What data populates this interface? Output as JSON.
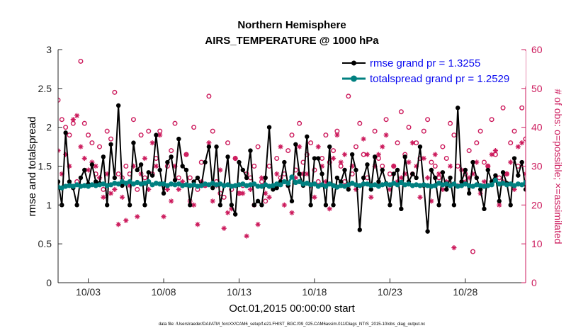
{
  "chart_data": {
    "type": "line",
    "title": "Northern Hemisphere",
    "subtitle": "AIRS_TEMPERATURE @ 1000 hPa",
    "xlabel": "Oct.01,2015 00:00:00 start",
    "ylabel": "rmse and totalspread",
    "ylabel_right": "# of obs: o=possible; ×=assimilated",
    "footnote": "data file: /Users/raeder/DAI/ATM_forcXX/CAM6_setup/f.e21.FHIST_BGC.f09_025.CAM6assim.011/Diags_NTrS_2015-10/obs_diag_output.nc",
    "xlim": [
      1.0,
      32.0
    ],
    "ylim": [
      0,
      3
    ],
    "ylim_right": [
      0,
      60
    ],
    "x_ticks": [
      {
        "value": 3,
        "label": "10/03"
      },
      {
        "value": 8,
        "label": "10/08"
      },
      {
        "value": 13,
        "label": "10/13"
      },
      {
        "value": 18,
        "label": "10/18"
      },
      {
        "value": 23,
        "label": "10/23"
      },
      {
        "value": 28,
        "label": "10/28"
      }
    ],
    "y_ticks": [
      {
        "value": 0,
        "label": "0"
      },
      {
        "value": 0.5,
        "label": "0.5"
      },
      {
        "value": 1,
        "label": "1"
      },
      {
        "value": 1.5,
        "label": "1.5"
      },
      {
        "value": 2,
        "label": "2"
      },
      {
        "value": 2.5,
        "label": "2.5"
      },
      {
        "value": 3,
        "label": "3"
      }
    ],
    "y_ticks_right": [
      {
        "value": 0,
        "label": "0"
      },
      {
        "value": 10,
        "label": "10"
      },
      {
        "value": 20,
        "label": "20"
      },
      {
        "value": 30,
        "label": "30"
      },
      {
        "value": 40,
        "label": "40"
      },
      {
        "value": 50,
        "label": "50"
      },
      {
        "value": 60,
        "label": "60"
      }
    ],
    "legend": [
      {
        "label": "rmse grand pr = 1.3255",
        "color": "#000000",
        "marker": "asterisk"
      },
      {
        "label": "totalspread grand pr = 1.2529",
        "color": "#008080",
        "marker": "circle"
      }
    ],
    "legend_position": "top-right",
    "colors": {
      "rmse": "#000000",
      "spread": "#008080",
      "obs": "#cc1a5c",
      "legend_text": "#0a0af0",
      "axis_right": "#cc1a5c"
    },
    "series": [
      {
        "name": "rmse",
        "x_start": 1.0,
        "x_step": 0.25,
        "values": [
          1.3,
          1.0,
          1.93,
          1.3,
          1.22,
          1.0,
          1.35,
          1.45,
          1.27,
          1.52,
          1.3,
          1.28,
          1.62,
          1.0,
          1.78,
          1.35,
          2.28,
          1.25,
          1.28,
          1.0,
          1.8,
          1.45,
          1.52,
          1.0,
          1.42,
          1.38,
          1.9,
          1.45,
          1.15,
          1.55,
          1.62,
          1.32,
          1.85,
          1.5,
          1.45,
          1.0,
          1.3,
          1.35,
          1.25,
          1.55,
          1.75,
          1.22,
          1.75,
          1.0,
          1.25,
          1.62,
          1.0,
          0.88,
          1.55,
          1.45,
          1.35,
          1.7,
          1.0,
          1.05,
          1.0,
          1.35,
          2.0,
          1.2,
          1.22,
          1.3,
          1.55,
          1.25,
          1.05,
          1.78,
          1.4,
          1.25,
          1.88,
          1.0,
          1.6,
          1.6,
          1.4,
          1.0,
          1.75,
          1.0,
          1.35,
          1.3,
          1.45,
          1.2,
          1.65,
          1.45,
          0.68,
          1.35,
          1.52,
          1.2,
          1.62,
          1.3,
          1.45,
          1.28,
          1.0,
          1.4,
          1.45,
          0.95,
          1.62,
          1.3,
          1.4,
          1.35,
          1.75,
          1.25,
          0.66,
          1.45,
          1.35,
          1.0,
          1.42,
          1.2,
          1.35,
          1.0,
          2.25,
          1.3,
          1.45,
          1.15,
          1.55,
          1.35,
          1.2,
          0.95,
          1.45,
          1.3,
          1.38,
          1.05,
          1.42,
          1.28,
          1.0,
          1.6,
          1.38,
          1.55,
          1.2,
          1.85,
          1.3,
          1.4,
          1.2,
          1.25,
          1.55,
          1.1,
          1.45,
          1.8,
          1.6,
          1.35,
          1.25,
          1.45,
          1.0,
          1.52,
          1.3,
          1.5,
          1.25,
          1.6,
          1.0,
          1.35,
          1.25,
          1.55,
          1.05,
          1.28,
          1.42,
          1.18,
          0.98,
          1.3,
          1.45,
          1.0,
          0.64,
          1.2,
          1.5,
          1.45,
          1.35,
          1.4,
          1.1,
          1.0,
          1.3,
          1.25,
          1.38,
          1.0,
          1.55,
          1.3,
          1.45,
          1.15,
          1.4,
          1.25,
          1.15,
          1.38,
          1.45,
          1.0,
          1.55,
          1.35,
          1.48,
          1.3,
          1.1,
          1.2,
          1.45,
          1.25,
          1.38,
          1.45,
          1.3,
          1.1,
          1.32,
          0.92,
          1.35,
          1.25,
          1.0,
          1.42,
          1.22,
          1.5,
          1.15,
          1.45,
          1.0,
          1.32,
          1.2,
          1.65,
          1.28,
          1.0,
          1.55,
          1.3,
          1.4,
          1.05,
          1.25,
          1.55,
          1.12,
          1.0,
          1.45,
          1.3,
          1.0,
          1.42,
          1.3,
          1.62,
          1.25,
          1.1,
          1.45,
          1.0,
          1.62,
          1.18,
          1.3,
          1.95,
          1.0,
          1.32,
          1.5,
          1.1,
          1.45,
          1.2,
          1.25,
          1.05,
          1.38,
          1.82,
          1.1,
          1.22,
          1.45,
          1.0,
          1.55,
          1.35,
          1.05,
          1.25,
          1.3,
          1.45,
          1.0,
          1.6,
          1.25,
          1.3,
          1.45,
          1.1,
          1.4,
          1.0,
          1.4,
          1.2,
          0.85,
          1.5,
          1.1,
          1.42,
          1.55,
          1.25,
          1.6,
          1.38,
          0.88,
          1.35,
          1.42,
          1.2,
          0.7
        ]
      },
      {
        "name": "totalspread",
        "x_start": 1.0,
        "x_step": 0.25,
        "values": [
          1.23,
          1.22,
          1.24,
          1.25,
          1.24,
          1.26,
          1.24,
          1.25,
          1.24,
          1.26,
          1.25,
          1.26,
          1.27,
          1.25,
          1.26,
          1.28,
          1.27,
          1.3,
          1.28,
          1.3,
          1.27,
          1.29,
          1.27,
          1.28,
          1.3,
          1.26,
          1.28,
          1.27,
          1.27,
          1.25,
          1.27,
          1.26,
          1.27,
          1.25,
          1.26,
          1.25,
          1.26,
          1.24,
          1.25,
          1.27,
          1.26,
          1.28,
          1.26,
          1.27,
          1.25,
          1.26,
          1.24,
          1.25,
          1.26,
          1.27,
          1.25,
          1.26,
          1.27,
          1.24,
          1.24,
          1.26,
          1.24,
          1.25,
          1.27,
          1.26,
          1.3,
          1.28,
          1.36,
          1.29,
          1.3,
          1.27,
          1.28,
          1.26,
          1.27,
          1.24,
          1.26,
          1.24,
          1.27,
          1.25,
          1.23,
          1.25,
          1.24,
          1.26,
          1.28,
          1.26,
          1.25,
          1.27,
          1.27,
          1.25,
          1.26,
          1.24,
          1.26,
          1.27,
          1.26,
          1.28,
          1.26,
          1.29,
          1.26,
          1.27,
          1.25,
          1.26,
          1.25,
          1.26,
          1.25,
          1.24,
          1.25,
          1.28,
          1.26,
          1.27,
          1.25,
          1.27,
          1.24,
          1.25,
          1.27,
          1.25,
          1.24,
          1.26,
          1.25,
          1.24,
          1.25,
          1.26,
          1.32,
          1.27,
          1.28,
          1.26,
          1.27,
          1.25,
          1.27,
          1.26,
          1.29,
          1.26,
          1.28,
          1.25,
          1.26,
          1.25,
          1.27,
          1.25,
          1.24,
          1.25,
          1.26,
          1.27,
          1.25,
          1.24,
          1.26,
          1.24,
          1.25,
          1.27,
          1.26,
          1.25,
          1.24,
          1.26,
          1.25,
          1.28,
          1.24,
          1.25,
          1.27,
          1.25,
          1.26,
          1.24,
          1.25,
          1.22,
          1.23,
          1.24,
          1.26,
          1.25,
          1.24,
          1.26,
          1.27,
          1.25,
          1.26,
          1.24,
          1.25,
          1.26,
          1.25,
          1.24,
          1.26,
          1.28,
          1.25,
          1.26,
          1.27,
          1.26,
          1.3,
          1.28,
          1.27,
          1.26,
          1.25,
          1.24,
          1.25,
          1.26,
          1.24,
          1.26,
          1.27,
          1.25,
          1.24,
          1.23,
          1.24,
          1.25,
          1.24,
          1.26,
          1.27,
          1.28,
          1.26,
          1.27,
          1.25,
          1.26,
          1.25,
          1.27,
          1.26,
          1.25,
          1.27,
          1.25,
          1.26,
          1.24,
          1.25,
          1.27,
          1.25,
          1.26,
          1.25,
          1.24,
          1.26,
          1.25,
          1.26,
          1.24,
          1.26,
          1.27,
          1.26,
          1.25,
          1.24,
          1.25,
          1.26,
          1.24,
          1.25,
          1.24,
          1.25,
          1.24,
          1.26,
          1.25,
          1.27,
          1.26,
          1.25,
          1.27,
          1.26,
          1.25,
          1.26,
          1.25,
          1.26,
          1.27,
          1.26,
          1.25,
          1.27,
          1.25,
          1.26,
          1.25,
          1.27,
          1.26,
          1.25,
          1.24,
          1.25,
          1.26,
          1.25,
          1.24,
          1.25,
          1.26,
          1.25,
          1.24,
          1.25,
          1.26,
          1.25
        ]
      },
      {
        "name": "obs_possible",
        "axis": "right",
        "x_start": 1.0,
        "x_step": 0.25,
        "values": [
          47,
          42,
          40,
          38,
          41,
          26,
          57,
          41,
          38,
          36,
          28,
          35,
          24,
          39,
          37,
          49,
          28,
          27,
          30,
          28,
          42,
          24,
          38,
          27,
          39,
          28,
          32,
          39,
          25,
          30,
          34,
          41,
          27,
          25,
          33,
          27,
          40,
          24,
          31,
          25,
          48,
          39,
          26,
          23,
          22,
          36,
          24,
          32,
          23,
          25,
          28,
          27,
          30,
          35,
          26,
          21,
          30,
          25,
          32,
          27,
          28,
          34,
          38,
          29,
          41,
          31,
          33,
          36,
          29,
          26,
          32,
          38,
          31,
          34,
          39,
          30,
          26,
          48,
          28,
          35,
          41,
          33,
          27,
          25,
          39,
          32,
          30,
          42,
          28,
          30,
          36,
          44,
          33,
          40,
          28,
          36,
          32,
          39,
          42,
          31,
          30,
          27,
          35,
          32,
          41,
          38,
          30,
          25,
          28,
          34,
          8,
          36,
          39,
          31,
          30,
          42,
          33,
          27,
          45,
          28,
          36,
          39,
          30,
          45,
          37,
          32,
          28,
          40,
          34,
          25,
          30,
          35,
          39,
          28,
          32,
          28,
          30,
          26,
          41,
          35,
          38,
          33,
          30,
          32,
          28,
          29,
          41,
          34,
          28,
          32,
          30,
          26,
          36,
          32,
          28,
          50,
          33,
          30,
          27,
          25,
          36,
          42,
          28,
          35,
          32,
          38,
          30,
          26,
          29,
          27,
          38,
          32,
          30,
          25,
          36,
          30,
          28,
          41,
          30,
          39,
          33,
          27,
          36,
          31,
          32,
          26,
          28,
          35,
          38,
          30,
          33,
          28,
          29,
          32,
          24,
          30,
          36,
          27,
          30,
          26,
          28,
          32,
          24,
          29,
          38,
          31,
          27,
          30,
          33,
          28,
          26,
          22,
          32,
          29,
          36,
          27,
          34,
          30,
          29,
          28,
          32,
          25,
          30,
          28,
          46,
          33,
          26,
          31,
          28,
          27,
          37,
          32,
          29,
          26,
          30,
          28,
          33,
          38,
          29,
          30,
          32,
          38,
          27,
          30,
          33,
          26,
          34,
          27,
          29,
          38,
          31,
          26,
          32,
          29,
          35,
          28,
          27,
          29,
          31,
          30,
          32,
          31,
          28,
          24,
          29
        ]
      },
      {
        "name": "obs_assimilated",
        "axis": "right",
        "x_start": 1.0,
        "x_step": 0.25,
        "values": [
          34,
          28,
          33,
          30,
          42,
          43,
          35,
          32,
          29,
          31,
          30,
          27,
          22,
          28,
          23,
          24,
          15,
          22,
          16,
          25,
          30,
          17,
          28,
          32,
          24,
          36,
          30,
          38,
          17,
          24,
          21,
          30,
          24,
          26,
          33,
          21,
          20,
          15,
          26,
          25,
          36,
          21,
          25,
          29,
          14,
          18,
          19,
          32,
          23,
          23,
          12,
          24,
          20,
          15,
          27,
          23,
          22,
          25,
          28,
          35,
          20,
          25,
          18,
          27,
          35,
          28,
          28,
          25,
          22,
          35,
          30,
          26,
          19,
          32,
          38,
          31,
          33,
          25,
          30,
          24,
          25,
          37,
          33,
          22,
          30,
          33,
          35,
          38,
          24,
          30,
          26,
          27,
          28,
          31,
          36,
          30,
          22,
          32,
          27,
          21,
          33,
          28,
          24,
          26,
          30,
          9,
          25,
          29,
          26,
          27,
          28,
          31,
          23,
          26,
          30,
          33,
          34,
          20,
          26,
          28,
          31,
          24,
          35,
          36,
          28,
          31,
          22,
          30,
          35,
          27,
          18,
          29,
          26,
          27,
          31,
          28,
          25,
          30,
          28,
          32,
          24,
          21,
          28,
          19,
          35,
          27,
          18,
          30,
          8,
          24,
          22,
          27,
          32,
          30,
          25,
          28,
          30,
          20,
          26,
          34,
          24,
          28,
          32,
          27,
          9,
          26,
          29,
          27,
          30,
          28,
          24,
          33,
          26,
          25,
          31,
          27,
          21,
          29,
          27,
          38,
          26,
          28,
          34,
          30,
          20,
          26,
          28,
          31,
          25,
          24,
          22,
          27,
          35,
          19,
          28,
          25,
          24,
          30,
          26,
          21,
          33,
          27,
          22,
          25,
          31,
          26,
          29,
          28,
          24,
          27,
          34,
          22,
          27,
          30,
          26,
          25,
          33,
          31,
          28,
          20,
          26,
          28,
          24,
          30,
          17,
          25,
          28,
          35,
          32,
          27,
          24,
          26,
          30,
          29,
          25,
          25,
          29,
          28,
          27,
          28,
          31,
          26,
          27,
          30,
          33,
          28,
          25,
          25,
          30,
          30,
          31,
          30,
          26,
          29,
          28,
          28,
          27,
          28,
          24,
          18,
          17,
          15,
          0
        ]
      }
    ]
  }
}
